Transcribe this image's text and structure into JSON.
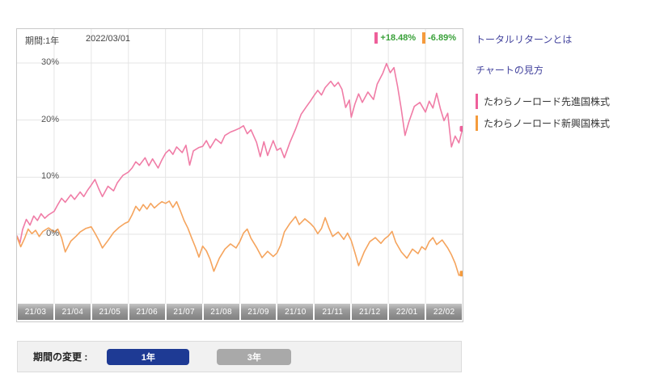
{
  "chart": {
    "period_label": "期間:1年",
    "as_of_date": "2022/03/01",
    "stats": [
      {
        "value": "+18.48%",
        "marker_color": "#ee5f9a",
        "text_color": "#3aa13a"
      },
      {
        "value": "-6.89%",
        "marker_color": "#f59b3c",
        "text_color": "#3aa13a"
      }
    ],
    "y_axis_ticks": [
      {
        "label": "30%",
        "value": 30
      },
      {
        "label": "20%",
        "value": 20
      },
      {
        "label": "10%",
        "value": 10
      },
      {
        "label": "0%",
        "value": 0
      }
    ],
    "x_axis_ticks": [
      "21/03",
      "21/04",
      "21/05",
      "21/06",
      "21/07",
      "21/08",
      "21/09",
      "21/10",
      "21/11",
      "21/12",
      "22/01",
      "22/02"
    ]
  },
  "chart_data": {
    "type": "line",
    "title": "",
    "xlabel": "",
    "ylabel": "",
    "x_unit": "months since 2021/03",
    "x_range": [
      0,
      12
    ],
    "x_tick_labels": [
      "21/03",
      "21/04",
      "21/05",
      "21/06",
      "21/07",
      "21/08",
      "21/09",
      "21/10",
      "21/11",
      "21/12",
      "22/01",
      "22/02"
    ],
    "y_tick_values": [
      0,
      10,
      20,
      30
    ],
    "ylim": [
      -12.3,
      35.9
    ],
    "grid": true,
    "legend_position": "right",
    "series": [
      {
        "name": "たわらノーロード先進国株式",
        "color": "#f07ca6",
        "final_return": "+18.48%",
        "points": [
          [
            0,
            -0.3
          ],
          [
            0.08,
            -1.5
          ],
          [
            0.15,
            0.8
          ],
          [
            0.25,
            2.6
          ],
          [
            0.35,
            1.6
          ],
          [
            0.45,
            3.2
          ],
          [
            0.55,
            2.4
          ],
          [
            0.65,
            3.6
          ],
          [
            0.75,
            2.8
          ],
          [
            0.85,
            3.4
          ],
          [
            1.0,
            4.0
          ],
          [
            1.1,
            5.2
          ],
          [
            1.2,
            6.3
          ],
          [
            1.3,
            5.6
          ],
          [
            1.45,
            6.9
          ],
          [
            1.55,
            6.1
          ],
          [
            1.7,
            7.4
          ],
          [
            1.8,
            6.6
          ],
          [
            1.9,
            7.7
          ],
          [
            2.0,
            8.6
          ],
          [
            2.1,
            9.6
          ],
          [
            2.2,
            8.0
          ],
          [
            2.3,
            6.6
          ],
          [
            2.45,
            8.4
          ],
          [
            2.6,
            7.6
          ],
          [
            2.7,
            9.0
          ],
          [
            2.85,
            10.3
          ],
          [
            3.0,
            10.9
          ],
          [
            3.1,
            11.6
          ],
          [
            3.2,
            12.7
          ],
          [
            3.3,
            12.1
          ],
          [
            3.45,
            13.4
          ],
          [
            3.55,
            12.0
          ],
          [
            3.65,
            13.2
          ],
          [
            3.8,
            11.6
          ],
          [
            3.9,
            13.0
          ],
          [
            4.0,
            14.2
          ],
          [
            4.1,
            14.8
          ],
          [
            4.2,
            14.0
          ],
          [
            4.3,
            15.3
          ],
          [
            4.45,
            14.3
          ],
          [
            4.55,
            15.6
          ],
          [
            4.65,
            12.1
          ],
          [
            4.75,
            14.6
          ],
          [
            4.9,
            15.2
          ],
          [
            5.0,
            15.4
          ],
          [
            5.1,
            16.4
          ],
          [
            5.2,
            15.1
          ],
          [
            5.35,
            16.7
          ],
          [
            5.5,
            15.9
          ],
          [
            5.6,
            17.3
          ],
          [
            5.75,
            17.9
          ],
          [
            5.9,
            18.3
          ],
          [
            6.0,
            18.6
          ],
          [
            6.1,
            19.0
          ],
          [
            6.2,
            17.6
          ],
          [
            6.3,
            18.3
          ],
          [
            6.45,
            16.1
          ],
          [
            6.55,
            13.6
          ],
          [
            6.65,
            16.2
          ],
          [
            6.75,
            13.8
          ],
          [
            6.9,
            16.4
          ],
          [
            7.0,
            14.7
          ],
          [
            7.1,
            15.1
          ],
          [
            7.2,
            13.4
          ],
          [
            7.35,
            16.1
          ],
          [
            7.5,
            18.4
          ],
          [
            7.65,
            21.0
          ],
          [
            7.8,
            22.4
          ],
          [
            7.9,
            23.3
          ],
          [
            8.0,
            24.3
          ],
          [
            8.1,
            25.2
          ],
          [
            8.2,
            24.4
          ],
          [
            8.3,
            25.7
          ],
          [
            8.45,
            26.8
          ],
          [
            8.55,
            25.9
          ],
          [
            8.65,
            26.6
          ],
          [
            8.75,
            25.4
          ],
          [
            8.85,
            22.2
          ],
          [
            8.95,
            23.5
          ],
          [
            9.0,
            20.5
          ],
          [
            9.1,
            22.8
          ],
          [
            9.2,
            24.6
          ],
          [
            9.3,
            23.1
          ],
          [
            9.45,
            24.9
          ],
          [
            9.6,
            23.6
          ],
          [
            9.7,
            26.3
          ],
          [
            9.85,
            28.2
          ],
          [
            9.95,
            29.9
          ],
          [
            10.05,
            28.3
          ],
          [
            10.15,
            29.2
          ],
          [
            10.25,
            25.9
          ],
          [
            10.35,
            21.9
          ],
          [
            10.45,
            17.3
          ],
          [
            10.55,
            19.6
          ],
          [
            10.7,
            22.4
          ],
          [
            10.85,
            23.1
          ],
          [
            11.0,
            21.4
          ],
          [
            11.1,
            23.3
          ],
          [
            11.2,
            22.1
          ],
          [
            11.3,
            24.7
          ],
          [
            11.4,
            22.0
          ],
          [
            11.5,
            19.9
          ],
          [
            11.6,
            21.2
          ],
          [
            11.7,
            15.3
          ],
          [
            11.8,
            17.2
          ],
          [
            11.9,
            16.0
          ],
          [
            12,
            18.48
          ]
        ]
      },
      {
        "name": "たわらノーロード新興国株式",
        "color": "#f5a45d",
        "final_return": "-6.89%",
        "points": [
          [
            0,
            -0.5
          ],
          [
            0.1,
            -2.2
          ],
          [
            0.2,
            -0.8
          ],
          [
            0.3,
            0.9
          ],
          [
            0.4,
            0.1
          ],
          [
            0.5,
            0.7
          ],
          [
            0.6,
            -0.4
          ],
          [
            0.7,
            0.5
          ],
          [
            0.85,
            1.1
          ],
          [
            1.0,
            0.4
          ],
          [
            1.1,
            0.9
          ],
          [
            1.2,
            -0.6
          ],
          [
            1.3,
            -3.1
          ],
          [
            1.45,
            -1.2
          ],
          [
            1.6,
            -0.3
          ],
          [
            1.7,
            0.4
          ],
          [
            1.85,
            1.0
          ],
          [
            2.0,
            1.3
          ],
          [
            2.1,
            0.2
          ],
          [
            2.2,
            -1.0
          ],
          [
            2.3,
            -2.4
          ],
          [
            2.45,
            -1.1
          ],
          [
            2.6,
            0.3
          ],
          [
            2.75,
            1.2
          ],
          [
            2.9,
            1.9
          ],
          [
            3.0,
            2.2
          ],
          [
            3.1,
            3.4
          ],
          [
            3.2,
            4.9
          ],
          [
            3.3,
            4.1
          ],
          [
            3.4,
            5.2
          ],
          [
            3.5,
            4.4
          ],
          [
            3.6,
            5.4
          ],
          [
            3.7,
            4.6
          ],
          [
            3.8,
            5.2
          ],
          [
            3.9,
            5.7
          ],
          [
            4.0,
            5.4
          ],
          [
            4.1,
            5.8
          ],
          [
            4.2,
            4.7
          ],
          [
            4.3,
            5.7
          ],
          [
            4.4,
            4.1
          ],
          [
            4.5,
            2.4
          ],
          [
            4.6,
            1.1
          ],
          [
            4.7,
            -0.6
          ],
          [
            4.8,
            -2.2
          ],
          [
            4.9,
            -4.0
          ],
          [
            5.0,
            -2.1
          ],
          [
            5.1,
            -2.9
          ],
          [
            5.2,
            -4.4
          ],
          [
            5.3,
            -6.5
          ],
          [
            5.45,
            -4.2
          ],
          [
            5.6,
            -2.6
          ],
          [
            5.75,
            -1.7
          ],
          [
            5.9,
            -2.4
          ],
          [
            6.0,
            -1.3
          ],
          [
            6.1,
            0.2
          ],
          [
            6.2,
            0.9
          ],
          [
            6.3,
            -0.7
          ],
          [
            6.45,
            -2.3
          ],
          [
            6.6,
            -4.1
          ],
          [
            6.75,
            -3.0
          ],
          [
            6.9,
            -3.9
          ],
          [
            7.0,
            -3.3
          ],
          [
            7.1,
            -1.9
          ],
          [
            7.2,
            0.4
          ],
          [
            7.35,
            1.9
          ],
          [
            7.5,
            3.1
          ],
          [
            7.6,
            1.7
          ],
          [
            7.75,
            2.7
          ],
          [
            7.9,
            1.9
          ],
          [
            8.0,
            1.2
          ],
          [
            8.1,
            0.1
          ],
          [
            8.2,
            1.0
          ],
          [
            8.3,
            2.9
          ],
          [
            8.4,
            1.1
          ],
          [
            8.5,
            -0.4
          ],
          [
            8.65,
            0.4
          ],
          [
            8.8,
            -0.9
          ],
          [
            8.9,
            0.2
          ],
          [
            9.0,
            -1.1
          ],
          [
            9.1,
            -3.2
          ],
          [
            9.2,
            -5.5
          ],
          [
            9.35,
            -3.1
          ],
          [
            9.5,
            -1.3
          ],
          [
            9.65,
            -0.6
          ],
          [
            9.8,
            -1.6
          ],
          [
            9.9,
            -0.8
          ],
          [
            10.0,
            -0.3
          ],
          [
            10.1,
            0.5
          ],
          [
            10.2,
            -1.4
          ],
          [
            10.35,
            -3.1
          ],
          [
            10.5,
            -4.2
          ],
          [
            10.65,
            -2.6
          ],
          [
            10.8,
            -3.4
          ],
          [
            10.9,
            -2.2
          ],
          [
            11.0,
            -2.7
          ],
          [
            11.1,
            -1.3
          ],
          [
            11.2,
            -0.6
          ],
          [
            11.3,
            -1.8
          ],
          [
            11.45,
            -1.0
          ],
          [
            11.6,
            -2.4
          ],
          [
            11.7,
            -3.6
          ],
          [
            11.8,
            -5.1
          ],
          [
            11.9,
            -7.2
          ],
          [
            12,
            -6.89
          ]
        ]
      }
    ]
  },
  "sidebar": {
    "links": [
      {
        "label": "トータルリターンとは"
      },
      {
        "label": "チャートの見方"
      }
    ],
    "legend": [
      {
        "label": "たわらノーロード先進国株式",
        "color": "#ee5f9a"
      },
      {
        "label": "たわらノーロード新興国株式",
        "color": "#f59b3c"
      }
    ]
  },
  "controls": {
    "label": "期間の変更 :",
    "buttons": [
      {
        "label": "1年",
        "active": true
      },
      {
        "label": "3年",
        "active": false
      }
    ]
  },
  "colors": {
    "link": "#44449e",
    "grid": "#e5e5e5",
    "frame_border": "#c9c9c9",
    "active_button": "#1e3a94",
    "inactive_button": "#a9a9a9",
    "value_text": "#3aa13a"
  }
}
